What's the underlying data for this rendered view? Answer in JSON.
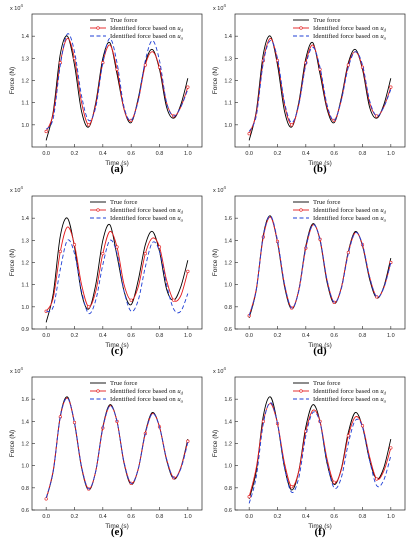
{
  "figure": {
    "legend": {
      "entries": [
        {
          "label": "True force",
          "color": "#000000",
          "dash": "",
          "marker": false
        },
        {
          "label": "Identified force based on ",
          "sub": "d",
          "color": "#e41a1c",
          "dash": "",
          "marker": true
        },
        {
          "label": "Identified force based on ",
          "sub": "a",
          "color": "#1f3fd6",
          "dash": "4,2.5",
          "marker": false
        }
      ]
    },
    "x_label": "Time (s)",
    "y_label": "Force (N)",
    "x_ticks": [
      "0.0",
      "0.2",
      "0.4",
      "0.6",
      "0.8",
      "1.0"
    ],
    "y_multiplier": "x 10",
    "y_multiplier_exp": "4"
  },
  "chart_data": [
    {
      "type": "line",
      "title": "(a)",
      "xlabel": "Time (s)",
      "ylabel": "Force (N)",
      "xlim": [
        -0.1,
        1.1
      ],
      "ylim": [
        0.9,
        1.5
      ],
      "yticks": [
        "1.0",
        "1.1",
        "1.2",
        "1.3",
        "1.4"
      ],
      "series": [
        {
          "name": "True force",
          "color": "#000000",
          "x": [
            0,
            0.05,
            0.1,
            0.15,
            0.2,
            0.25,
            0.3,
            0.35,
            0.4,
            0.45,
            0.5,
            0.55,
            0.6,
            0.65,
            0.7,
            0.75,
            0.8,
            0.85,
            0.9,
            0.95,
            1.0
          ],
          "y": [
            0.93,
            1.06,
            1.32,
            1.4,
            1.27,
            1.06,
            0.99,
            1.1,
            1.3,
            1.37,
            1.23,
            1.07,
            1.01,
            1.12,
            1.28,
            1.34,
            1.25,
            1.08,
            1.03,
            1.09,
            1.21
          ]
        },
        {
          "name": "Identified force based on d",
          "color": "#e41a1c",
          "x": [
            0,
            0.05,
            0.1,
            0.15,
            0.2,
            0.25,
            0.3,
            0.35,
            0.4,
            0.45,
            0.5,
            0.55,
            0.6,
            0.65,
            0.7,
            0.75,
            0.8,
            0.85,
            0.9,
            0.95,
            1.0
          ],
          "y": [
            0.97,
            1.05,
            1.28,
            1.39,
            1.3,
            1.1,
            1.0,
            1.09,
            1.28,
            1.36,
            1.25,
            1.07,
            1.02,
            1.11,
            1.27,
            1.33,
            1.26,
            1.1,
            1.04,
            1.08,
            1.17
          ]
        },
        {
          "name": "Identified force based on a",
          "color": "#1f3fd6",
          "x": [
            0,
            0.05,
            0.1,
            0.15,
            0.2,
            0.25,
            0.3,
            0.35,
            0.4,
            0.45,
            0.5,
            0.55,
            0.6,
            0.65,
            0.7,
            0.75,
            0.8,
            0.85,
            0.9,
            0.95,
            1.0
          ],
          "y": [
            0.98,
            1.03,
            1.27,
            1.41,
            1.33,
            1.13,
            1.02,
            1.08,
            1.28,
            1.39,
            1.28,
            1.08,
            1.02,
            1.11,
            1.29,
            1.38,
            1.29,
            1.1,
            1.04,
            1.08,
            1.16
          ]
        }
      ]
    },
    {
      "type": "line",
      "title": "(b)",
      "xlabel": "Time (s)",
      "ylabel": "Force (N)",
      "xlim": [
        -0.1,
        1.1
      ],
      "ylim": [
        0.9,
        1.5
      ],
      "yticks": [
        "1.0",
        "1.1",
        "1.2",
        "1.3",
        "1.4"
      ],
      "series": [
        {
          "name": "True force",
          "color": "#000000",
          "x": [
            0,
            0.05,
            0.1,
            0.15,
            0.2,
            0.25,
            0.3,
            0.35,
            0.4,
            0.45,
            0.5,
            0.55,
            0.6,
            0.65,
            0.7,
            0.75,
            0.8,
            0.85,
            0.9,
            0.95,
            1.0
          ],
          "y": [
            0.93,
            1.06,
            1.32,
            1.4,
            1.27,
            1.06,
            0.99,
            1.1,
            1.3,
            1.37,
            1.23,
            1.07,
            1.01,
            1.12,
            1.28,
            1.34,
            1.25,
            1.08,
            1.03,
            1.09,
            1.21
          ]
        },
        {
          "name": "Identified force based on d",
          "color": "#e41a1c",
          "x": [
            0,
            0.05,
            0.1,
            0.15,
            0.2,
            0.25,
            0.3,
            0.35,
            0.4,
            0.45,
            0.5,
            0.55,
            0.6,
            0.65,
            0.7,
            0.75,
            0.8,
            0.85,
            0.9,
            0.95,
            1.0
          ],
          "y": [
            0.96,
            1.05,
            1.29,
            1.39,
            1.29,
            1.09,
            1.0,
            1.09,
            1.28,
            1.36,
            1.25,
            1.08,
            1.02,
            1.11,
            1.27,
            1.33,
            1.26,
            1.1,
            1.04,
            1.08,
            1.17
          ]
        },
        {
          "name": "Identified force based on a",
          "color": "#1f3fd6",
          "x": [
            0,
            0.05,
            0.1,
            0.15,
            0.2,
            0.25,
            0.3,
            0.35,
            0.4,
            0.45,
            0.5,
            0.55,
            0.6,
            0.65,
            0.7,
            0.75,
            0.8,
            0.85,
            0.9,
            0.95,
            1.0
          ],
          "y": [
            0.97,
            1.04,
            1.28,
            1.38,
            1.3,
            1.1,
            1.01,
            1.09,
            1.27,
            1.35,
            1.26,
            1.09,
            1.02,
            1.11,
            1.26,
            1.33,
            1.27,
            1.11,
            1.04,
            1.08,
            1.16
          ]
        }
      ]
    },
    {
      "type": "line",
      "title": "(c)",
      "xlabel": "Time (s)",
      "ylabel": "Force (N)",
      "xlim": [
        -0.1,
        1.1
      ],
      "ylim": [
        0.9,
        1.5
      ],
      "yticks": [
        "0.9",
        "1.0",
        "1.1",
        "1.2",
        "1.3",
        "1.4"
      ],
      "series": [
        {
          "name": "True force",
          "color": "#000000",
          "x": [
            0,
            0.05,
            0.1,
            0.15,
            0.2,
            0.25,
            0.3,
            0.35,
            0.4,
            0.45,
            0.5,
            0.55,
            0.6,
            0.65,
            0.7,
            0.75,
            0.8,
            0.85,
            0.9,
            0.95,
            1.0
          ],
          "y": [
            0.93,
            1.06,
            1.32,
            1.4,
            1.27,
            1.06,
            0.99,
            1.1,
            1.3,
            1.37,
            1.23,
            1.07,
            1.01,
            1.12,
            1.28,
            1.34,
            1.25,
            1.08,
            1.03,
            1.09,
            1.21
          ]
        },
        {
          "name": "Identified force based on d",
          "color": "#e41a1c",
          "x": [
            0,
            0.05,
            0.1,
            0.15,
            0.2,
            0.25,
            0.3,
            0.35,
            0.4,
            0.45,
            0.5,
            0.55,
            0.6,
            0.65,
            0.7,
            0.75,
            0.8,
            0.85,
            0.9,
            0.95,
            1.0
          ],
          "y": [
            0.98,
            1.04,
            1.25,
            1.36,
            1.28,
            1.1,
            1.0,
            1.07,
            1.24,
            1.34,
            1.27,
            1.1,
            1.03,
            1.09,
            1.24,
            1.31,
            1.27,
            1.12,
            1.03,
            1.05,
            1.16
          ]
        },
        {
          "name": "Identified force based on a",
          "color": "#1f3fd6",
          "x": [
            0,
            0.05,
            0.1,
            0.15,
            0.2,
            0.25,
            0.3,
            0.35,
            0.4,
            0.45,
            0.5,
            0.55,
            0.6,
            0.65,
            0.7,
            0.75,
            0.8,
            0.85,
            0.9,
            0.95,
            1.0
          ],
          "y": [
            0.98,
            1.0,
            1.17,
            1.3,
            1.24,
            1.07,
            0.97,
            1.03,
            1.19,
            1.3,
            1.24,
            1.07,
            0.98,
            1.03,
            1.18,
            1.29,
            1.25,
            1.1,
            0.99,
            0.98,
            1.06
          ]
        }
      ]
    },
    {
      "type": "line",
      "title": "(d)",
      "xlabel": "Time (s)",
      "ylabel": "Force (N)",
      "xlim": [
        -0.1,
        1.1
      ],
      "ylim": [
        0.6,
        1.8
      ],
      "yticks": [
        "0.6",
        "0.8",
        "1.0",
        "1.2",
        "1.4",
        "1.6"
      ],
      "series": [
        {
          "name": "True force",
          "color": "#000000",
          "x": [
            0,
            0.05,
            0.1,
            0.15,
            0.2,
            0.25,
            0.3,
            0.35,
            0.4,
            0.45,
            0.5,
            0.55,
            0.6,
            0.65,
            0.7,
            0.75,
            0.8,
            0.85,
            0.9,
            0.95,
            1.0
          ],
          "y": [
            0.7,
            0.95,
            1.45,
            1.62,
            1.38,
            0.98,
            0.78,
            0.95,
            1.35,
            1.55,
            1.4,
            1.02,
            0.83,
            0.97,
            1.3,
            1.48,
            1.35,
            1.05,
            0.88,
            0.98,
            1.24
          ]
        },
        {
          "name": "Identified force based on d",
          "color": "#e41a1c",
          "x": [
            0,
            0.05,
            0.1,
            0.15,
            0.2,
            0.25,
            0.3,
            0.35,
            0.4,
            0.45,
            0.5,
            0.55,
            0.6,
            0.65,
            0.7,
            0.75,
            0.8,
            0.85,
            0.9,
            0.95,
            1.0
          ],
          "y": [
            0.72,
            0.96,
            1.43,
            1.61,
            1.39,
            1.0,
            0.79,
            0.95,
            1.33,
            1.54,
            1.41,
            1.04,
            0.84,
            0.97,
            1.29,
            1.47,
            1.36,
            1.07,
            0.89,
            0.97,
            1.2
          ]
        },
        {
          "name": "Identified force based on a",
          "color": "#1f3fd6",
          "x": [
            0,
            0.05,
            0.1,
            0.15,
            0.2,
            0.25,
            0.3,
            0.35,
            0.4,
            0.45,
            0.5,
            0.55,
            0.6,
            0.65,
            0.7,
            0.75,
            0.8,
            0.85,
            0.9,
            0.95,
            1.0
          ],
          "y": [
            0.72,
            0.95,
            1.44,
            1.62,
            1.4,
            1.0,
            0.79,
            0.94,
            1.33,
            1.54,
            1.41,
            1.04,
            0.84,
            0.96,
            1.28,
            1.47,
            1.36,
            1.07,
            0.89,
            0.97,
            1.2
          ]
        }
      ]
    },
    {
      "type": "line",
      "title": "(e)",
      "xlabel": "Time (s)",
      "ylabel": "Force (N)",
      "xlim": [
        -0.1,
        1.1
      ],
      "ylim": [
        0.6,
        1.8
      ],
      "yticks": [
        "0.6",
        "0.8",
        "1.0",
        "1.2",
        "1.4",
        "1.6"
      ],
      "series": [
        {
          "name": "True force",
          "color": "#000000",
          "x": [
            0,
            0.05,
            0.1,
            0.15,
            0.2,
            0.25,
            0.3,
            0.35,
            0.4,
            0.45,
            0.5,
            0.55,
            0.6,
            0.65,
            0.7,
            0.75,
            0.8,
            0.85,
            0.9,
            0.95,
            1.0
          ],
          "y": [
            0.7,
            0.95,
            1.45,
            1.62,
            1.38,
            0.98,
            0.78,
            0.95,
            1.35,
            1.55,
            1.4,
            1.02,
            0.83,
            0.97,
            1.3,
            1.48,
            1.35,
            1.05,
            0.88,
            0.98,
            1.24
          ]
        },
        {
          "name": "Identified force based on d",
          "color": "#e41a1c",
          "x": [
            0,
            0.05,
            0.1,
            0.15,
            0.2,
            0.25,
            0.3,
            0.35,
            0.4,
            0.45,
            0.5,
            0.55,
            0.6,
            0.65,
            0.7,
            0.75,
            0.8,
            0.85,
            0.9,
            0.95,
            1.0
          ],
          "y": [
            0.7,
            0.96,
            1.44,
            1.61,
            1.39,
            0.99,
            0.79,
            0.95,
            1.34,
            1.54,
            1.4,
            1.03,
            0.84,
            0.97,
            1.29,
            1.47,
            1.35,
            1.06,
            0.89,
            0.98,
            1.22
          ]
        },
        {
          "name": "Identified force based on a",
          "color": "#1f3fd6",
          "x": [
            0,
            0.05,
            0.1,
            0.15,
            0.2,
            0.25,
            0.3,
            0.35,
            0.4,
            0.45,
            0.5,
            0.55,
            0.6,
            0.65,
            0.7,
            0.75,
            0.8,
            0.85,
            0.9,
            0.95,
            1.0
          ],
          "y": [
            0.71,
            0.95,
            1.44,
            1.61,
            1.39,
            0.99,
            0.79,
            0.95,
            1.34,
            1.54,
            1.4,
            1.03,
            0.84,
            0.97,
            1.29,
            1.47,
            1.35,
            1.06,
            0.89,
            0.97,
            1.21
          ]
        }
      ]
    },
    {
      "type": "line",
      "title": "(f)",
      "xlabel": "Time (s)",
      "ylabel": "Force (N)",
      "xlim": [
        -0.1,
        1.1
      ],
      "ylim": [
        0.6,
        1.8
      ],
      "yticks": [
        "0.6",
        "0.8",
        "1.0",
        "1.2",
        "1.4",
        "1.6"
      ],
      "series": [
        {
          "name": "True force",
          "color": "#000000",
          "x": [
            0,
            0.05,
            0.1,
            0.15,
            0.2,
            0.25,
            0.3,
            0.35,
            0.4,
            0.45,
            0.5,
            0.55,
            0.6,
            0.65,
            0.7,
            0.75,
            0.8,
            0.85,
            0.9,
            0.95,
            1.0
          ],
          "y": [
            0.7,
            0.95,
            1.45,
            1.62,
            1.38,
            0.98,
            0.78,
            0.95,
            1.35,
            1.55,
            1.4,
            1.02,
            0.83,
            0.97,
            1.3,
            1.48,
            1.35,
            1.05,
            0.88,
            0.98,
            1.24
          ]
        },
        {
          "name": "Identified force based on d",
          "color": "#e41a1c",
          "x": [
            0,
            0.05,
            0.1,
            0.15,
            0.2,
            0.25,
            0.3,
            0.35,
            0.4,
            0.45,
            0.5,
            0.55,
            0.6,
            0.65,
            0.7,
            0.75,
            0.8,
            0.85,
            0.9,
            0.95,
            1.0
          ],
          "y": [
            0.72,
            0.98,
            1.4,
            1.56,
            1.38,
            1.02,
            0.81,
            0.95,
            1.31,
            1.5,
            1.4,
            1.06,
            0.85,
            0.96,
            1.27,
            1.44,
            1.36,
            1.08,
            0.88,
            0.95,
            1.16
          ]
        },
        {
          "name": "Identified force based on a",
          "color": "#1f3fd6",
          "x": [
            0,
            0.05,
            0.1,
            0.15,
            0.2,
            0.25,
            0.3,
            0.35,
            0.4,
            0.45,
            0.5,
            0.55,
            0.6,
            0.65,
            0.7,
            0.75,
            0.8,
            0.85,
            0.9,
            0.95,
            1.0
          ],
          "y": [
            0.66,
            0.9,
            1.38,
            1.57,
            1.38,
            0.98,
            0.76,
            0.89,
            1.27,
            1.48,
            1.39,
            1.03,
            0.8,
            0.89,
            1.2,
            1.41,
            1.35,
            1.05,
            0.82,
            0.87,
            1.09
          ]
        }
      ]
    }
  ]
}
